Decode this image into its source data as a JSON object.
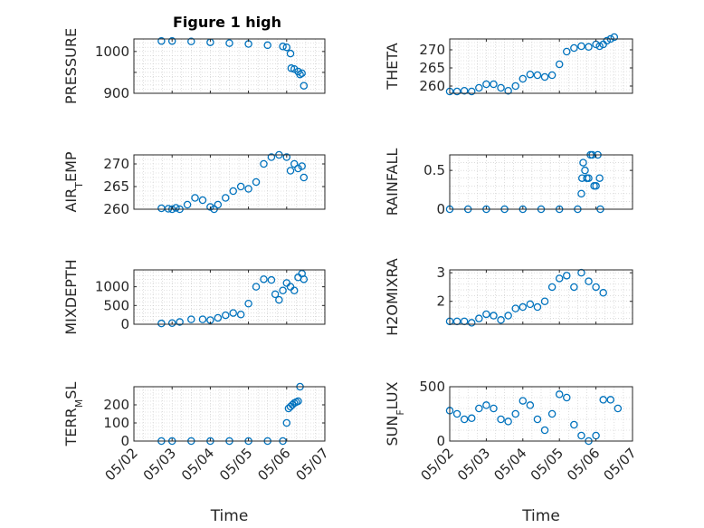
{
  "figure_title": "Figure 1 high",
  "colors": {
    "marker": "#0072BD",
    "axis": "#262626",
    "grid": "#c8c8c8"
  },
  "shared_x": {
    "label": "Time",
    "range_days": [
      "05/02",
      "05/07"
    ],
    "tick_labels": [
      "05/02",
      "05/03",
      "05/04",
      "05/05",
      "05/06",
      "05/07"
    ]
  },
  "chart_data": [
    {
      "type": "scatter",
      "ylabel": "PRESSURE",
      "ylabel_sub": "",
      "ylabel_sub_after": "",
      "ylim": [
        900,
        1030
      ],
      "yticks": [
        900,
        950,
        1000
      ],
      "ytick_labels": [
        "900",
        "",
        "1000"
      ],
      "pts": [
        [
          0.72,
          1025
        ],
        [
          1.0,
          1025
        ],
        [
          1.5,
          1024
        ],
        [
          2.0,
          1022
        ],
        [
          2.5,
          1020
        ],
        [
          3.0,
          1018
        ],
        [
          3.5,
          1015
        ],
        [
          3.9,
          1012
        ],
        [
          4.0,
          1010
        ],
        [
          4.1,
          995
        ],
        [
          4.12,
          960
        ],
        [
          4.2,
          958
        ],
        [
          4.3,
          952
        ],
        [
          4.35,
          945
        ],
        [
          4.4,
          948
        ],
        [
          4.45,
          918
        ]
      ]
    },
    {
      "type": "scatter",
      "ylabel": "THETA",
      "ylabel_sub": "",
      "ylabel_sub_after": "",
      "ylim": [
        258,
        273
      ],
      "yticks": [
        260,
        265,
        270
      ],
      "ytick_labels": [
        "260",
        "265",
        "270"
      ],
      "pts": [
        [
          0.0,
          258.5
        ],
        [
          0.2,
          258.5
        ],
        [
          0.4,
          258.7
        ],
        [
          0.6,
          258.5
        ],
        [
          0.8,
          259.5
        ],
        [
          1.0,
          260.5
        ],
        [
          1.2,
          260.5
        ],
        [
          1.4,
          259.5
        ],
        [
          1.6,
          258.7
        ],
        [
          1.8,
          260
        ],
        [
          2.0,
          262
        ],
        [
          2.2,
          263.2
        ],
        [
          2.4,
          263
        ],
        [
          2.6,
          262.5
        ],
        [
          2.8,
          263
        ],
        [
          3.0,
          266
        ],
        [
          3.2,
          269.5
        ],
        [
          3.4,
          270.5
        ],
        [
          3.6,
          271
        ],
        [
          3.8,
          270.8
        ],
        [
          4.0,
          271.5
        ],
        [
          4.1,
          271
        ],
        [
          4.2,
          271.5
        ],
        [
          4.3,
          272.5
        ],
        [
          4.4,
          273
        ],
        [
          4.5,
          273.5
        ]
      ]
    },
    {
      "type": "scatter",
      "ylabel": "AIR",
      "ylabel_sub": "T",
      "ylabel_sub_after": "EMP",
      "ylim": [
        260,
        272
      ],
      "yticks": [
        260,
        265,
        270
      ],
      "ytick_labels": [
        "260",
        "265",
        "270"
      ],
      "pts": [
        [
          0.72,
          260.2
        ],
        [
          0.9,
          260.1
        ],
        [
          1.0,
          260
        ],
        [
          1.1,
          260.3
        ],
        [
          1.2,
          260
        ],
        [
          1.4,
          261
        ],
        [
          1.6,
          262.5
        ],
        [
          1.8,
          262
        ],
        [
          2.0,
          260.5
        ],
        [
          2.1,
          260
        ],
        [
          2.2,
          261
        ],
        [
          2.4,
          262.5
        ],
        [
          2.6,
          264
        ],
        [
          2.8,
          265
        ],
        [
          3.0,
          264.5
        ],
        [
          3.2,
          266
        ],
        [
          3.4,
          270
        ],
        [
          3.6,
          271.5
        ],
        [
          3.8,
          272
        ],
        [
          4.0,
          271.5
        ],
        [
          4.1,
          268.5
        ],
        [
          4.2,
          270
        ],
        [
          4.3,
          269
        ],
        [
          4.4,
          269.5
        ],
        [
          4.45,
          267
        ]
      ]
    },
    {
      "type": "scatter",
      "ylabel": "RAINFALL",
      "ylabel_sub": "",
      "ylabel_sub_after": "",
      "ylim": [
        0,
        0.7
      ],
      "yticks": [
        0,
        0.5
      ],
      "ytick_labels": [
        "0",
        "0.5"
      ],
      "pts": [
        [
          0.0,
          0
        ],
        [
          0.5,
          0
        ],
        [
          1.0,
          0
        ],
        [
          1.5,
          0
        ],
        [
          2.0,
          0
        ],
        [
          2.5,
          0
        ],
        [
          3.0,
          0
        ],
        [
          3.5,
          0
        ],
        [
          3.6,
          0.2
        ],
        [
          3.62,
          0.4
        ],
        [
          3.65,
          0.6
        ],
        [
          3.7,
          0.5
        ],
        [
          3.75,
          0.4
        ],
        [
          3.8,
          0.4
        ],
        [
          3.85,
          0.7
        ],
        [
          3.9,
          0.7
        ],
        [
          3.95,
          0.3
        ],
        [
          4.0,
          0.3
        ],
        [
          4.05,
          0.7
        ],
        [
          4.1,
          0.4
        ],
        [
          4.12,
          0
        ]
      ]
    },
    {
      "type": "scatter",
      "ylabel": "MIXDEPTH",
      "ylabel_sub": "",
      "ylabel_sub_after": "",
      "ylim": [
        0,
        1450
      ],
      "yticks": [
        0,
        500,
        1000
      ],
      "ytick_labels": [
        "0",
        "500",
        "1000"
      ],
      "pts": [
        [
          0.72,
          20
        ],
        [
          1.0,
          30
        ],
        [
          1.2,
          60
        ],
        [
          1.5,
          130
        ],
        [
          1.8,
          130
        ],
        [
          2.0,
          110
        ],
        [
          2.2,
          170
        ],
        [
          2.4,
          240
        ],
        [
          2.6,
          300
        ],
        [
          2.8,
          260
        ],
        [
          3.0,
          550
        ],
        [
          3.2,
          1000
        ],
        [
          3.4,
          1200
        ],
        [
          3.6,
          1180
        ],
        [
          3.7,
          800
        ],
        [
          3.8,
          650
        ],
        [
          3.9,
          900
        ],
        [
          4.0,
          1100
        ],
        [
          4.1,
          1000
        ],
        [
          4.2,
          900
        ],
        [
          4.3,
          1250
        ],
        [
          4.4,
          1350
        ],
        [
          4.45,
          1200
        ]
      ]
    },
    {
      "type": "scatter",
      "ylabel": "H2OMIXRA",
      "ylabel_sub": "",
      "ylabel_sub_after": "",
      "ylim": [
        1.2,
        3.1
      ],
      "yticks": [
        2,
        3
      ],
      "ytick_labels": [
        "2",
        "3"
      ],
      "pts": [
        [
          0.0,
          1.3
        ],
        [
          0.2,
          1.3
        ],
        [
          0.4,
          1.3
        ],
        [
          0.6,
          1.25
        ],
        [
          0.8,
          1.4
        ],
        [
          1.0,
          1.55
        ],
        [
          1.2,
          1.5
        ],
        [
          1.4,
          1.35
        ],
        [
          1.6,
          1.5
        ],
        [
          1.8,
          1.75
        ],
        [
          2.0,
          1.8
        ],
        [
          2.2,
          1.9
        ],
        [
          2.4,
          1.8
        ],
        [
          2.6,
          2.0
        ],
        [
          2.8,
          2.5
        ],
        [
          3.0,
          2.8
        ],
        [
          3.2,
          2.9
        ],
        [
          3.4,
          2.5
        ],
        [
          3.6,
          3.0
        ],
        [
          3.8,
          2.7
        ],
        [
          4.0,
          2.5
        ],
        [
          4.2,
          2.3
        ]
      ]
    },
    {
      "type": "scatter",
      "ylabel": "TERR",
      "ylabel_sub": "M",
      "ylabel_sub_after": "SL",
      "ylim": [
        0,
        300
      ],
      "yticks": [
        0,
        100,
        200
      ],
      "ytick_labels": [
        "0",
        "100",
        "200"
      ],
      "pts": [
        [
          0.72,
          0
        ],
        [
          1.0,
          0
        ],
        [
          1.5,
          0
        ],
        [
          2.0,
          0
        ],
        [
          2.5,
          0
        ],
        [
          3.0,
          0
        ],
        [
          3.5,
          0
        ],
        [
          3.9,
          0
        ],
        [
          4.0,
          100
        ],
        [
          4.05,
          180
        ],
        [
          4.1,
          190
        ],
        [
          4.15,
          200
        ],
        [
          4.2,
          210
        ],
        [
          4.25,
          215
        ],
        [
          4.3,
          220
        ],
        [
          4.35,
          300
        ]
      ]
    },
    {
      "type": "scatter",
      "ylabel": "SUN",
      "ylabel_sub": "F",
      "ylabel_sub_after": "LUX",
      "ylim": [
        0,
        500
      ],
      "yticks": [
        0,
        500
      ],
      "ytick_labels": [
        "0",
        "500"
      ],
      "pts": [
        [
          0.0,
          280
        ],
        [
          0.2,
          250
        ],
        [
          0.4,
          200
        ],
        [
          0.6,
          210
        ],
        [
          0.8,
          300
        ],
        [
          1.0,
          330
        ],
        [
          1.2,
          300
        ],
        [
          1.4,
          200
        ],
        [
          1.6,
          180
        ],
        [
          1.8,
          250
        ],
        [
          2.0,
          370
        ],
        [
          2.2,
          330
        ],
        [
          2.4,
          200
        ],
        [
          2.6,
          100
        ],
        [
          2.8,
          250
        ],
        [
          3.0,
          430
        ],
        [
          3.2,
          400
        ],
        [
          3.4,
          150
        ],
        [
          3.6,
          50
        ],
        [
          3.8,
          0
        ],
        [
          4.0,
          50
        ],
        [
          4.2,
          380
        ],
        [
          4.4,
          380
        ],
        [
          4.6,
          300
        ]
      ]
    }
  ]
}
